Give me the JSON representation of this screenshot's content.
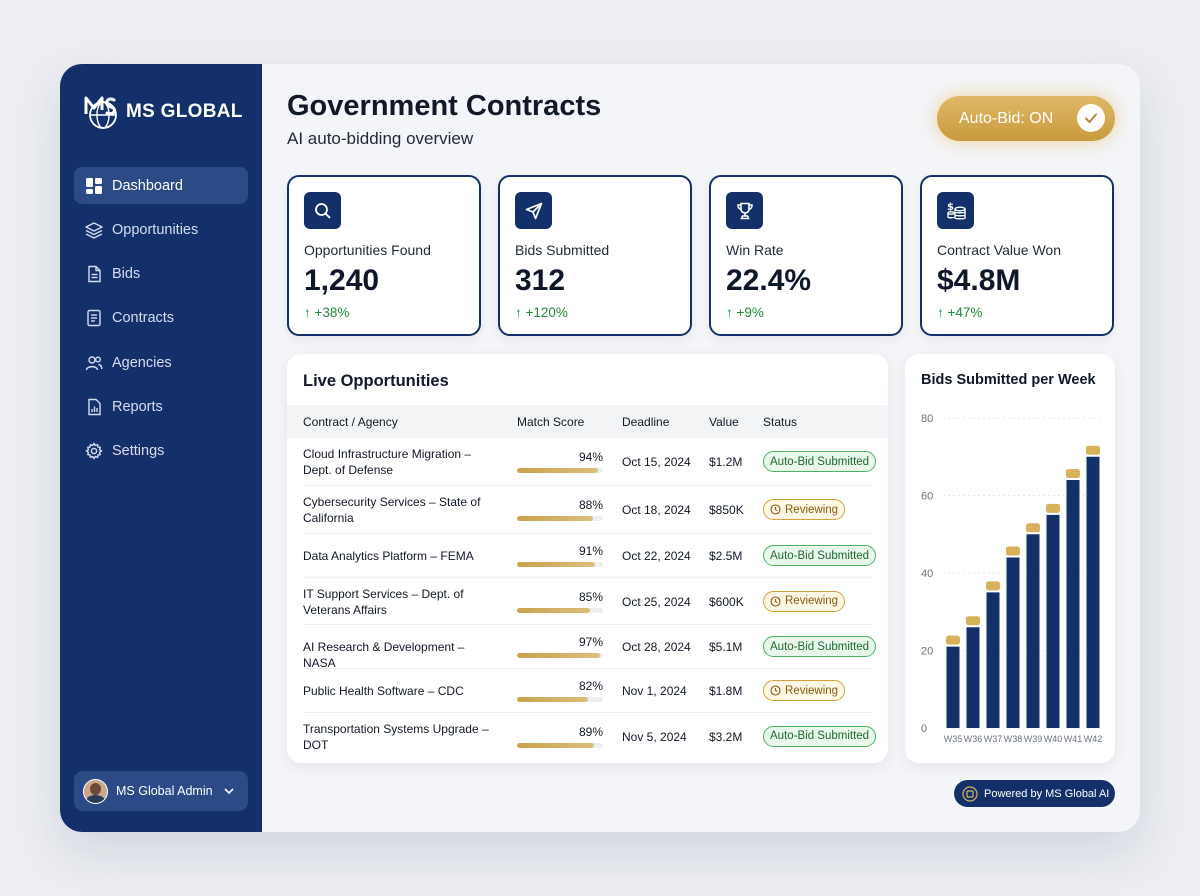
{
  "brand": {
    "name": "MS GLOBAL",
    "colors": {
      "navy": "#14306b",
      "gold": "#c99a3e",
      "green": "#1f8a3a"
    }
  },
  "sidebar": {
    "items": [
      {
        "label": "Dashboard",
        "icon": "dashboard-icon",
        "active": true
      },
      {
        "label": "Opportunities",
        "icon": "layers-icon"
      },
      {
        "label": "Bids",
        "icon": "document-icon"
      },
      {
        "label": "Contracts",
        "icon": "contract-icon"
      },
      {
        "label": "Agencies",
        "icon": "users-icon"
      },
      {
        "label": "Reports",
        "icon": "report-icon"
      },
      {
        "label": "Settings",
        "icon": "gear-icon"
      }
    ],
    "user": {
      "name": "MS Global Admin"
    }
  },
  "header": {
    "title": "Government Contracts",
    "subtitle": "AI auto-bidding overview",
    "autobid_label": "Auto-Bid: ON"
  },
  "stats": [
    {
      "label": "Opportunities Found",
      "value": "1,240",
      "change": "↑ +38%",
      "icon": "search-icon"
    },
    {
      "label": "Bids Submitted",
      "value": "312",
      "change": "↑ +120%",
      "icon": "send-icon"
    },
    {
      "label": "Win Rate",
      "value": "22.4%",
      "change": "↑ +9%",
      "icon": "trophy-icon"
    },
    {
      "label": "Contract Value Won",
      "value": "$4.8M",
      "change": "↑ +47%",
      "icon": "coins-icon"
    }
  ],
  "live": {
    "title": "Live Opportunities",
    "columns": [
      "Contract / Agency",
      "Match Score",
      "Deadline",
      "Value",
      "Status"
    ],
    "rows": [
      {
        "name": "Cloud Infrastructure Migration – Dept. of Defense",
        "score": 94,
        "score_label": "94%",
        "deadline": "Oct 15, 2024",
        "value": "$1.2M",
        "status": "Auto-Bid Submitted",
        "kind": "sub"
      },
      {
        "name": "Cybersecurity Services – State of California",
        "score": 88,
        "score_label": "88%",
        "deadline": "Oct 18, 2024",
        "value": "$850K",
        "status": "Reviewing",
        "kind": "rev"
      },
      {
        "name": "Data Analytics Platform – FEMA",
        "score": 91,
        "score_label": "91%",
        "deadline": "Oct 22, 2024",
        "value": "$2.5M",
        "status": "Auto-Bid Submitted",
        "kind": "sub"
      },
      {
        "name": "IT Support Services – Dept. of Veterans Affairs",
        "score": 85,
        "score_label": "85%",
        "deadline": "Oct 25, 2024",
        "value": "$600K",
        "status": "Reviewing",
        "kind": "rev"
      },
      {
        "name": "AI Research & Development – NASA",
        "score": 97,
        "score_label": "97%",
        "deadline": "Oct 28, 2024",
        "value": "$5.1M",
        "status": "Auto-Bid Submitted",
        "kind": "sub"
      },
      {
        "name": "Public Health Software – CDC",
        "score": 82,
        "score_label": "82%",
        "deadline": "Nov 1, 2024",
        "value": "$1.8M",
        "status": "Reviewing",
        "kind": "rev"
      },
      {
        "name": "Transportation Systems Upgrade – DOT",
        "score": 89,
        "score_label": "89%",
        "deadline": "Nov 5, 2024",
        "value": "$3.2M",
        "status": "Auto-Bid Submitted",
        "kind": "sub"
      }
    ]
  },
  "chart_data": {
    "type": "bar",
    "title": "Bids Submitted per Week",
    "categories": [
      "W35",
      "W36",
      "W37",
      "W38",
      "W39",
      "W40",
      "W41",
      "W42"
    ],
    "values": [
      21,
      26,
      35,
      44,
      50,
      55,
      64,
      70
    ],
    "yticks": [
      0,
      20,
      40,
      60,
      80
    ],
    "ylim": [
      0,
      80
    ],
    "grid": true,
    "bar_color": "#14306b",
    "cap_color": "#d8b25a"
  },
  "footer": {
    "powered": "Powered by MS Global AI"
  }
}
